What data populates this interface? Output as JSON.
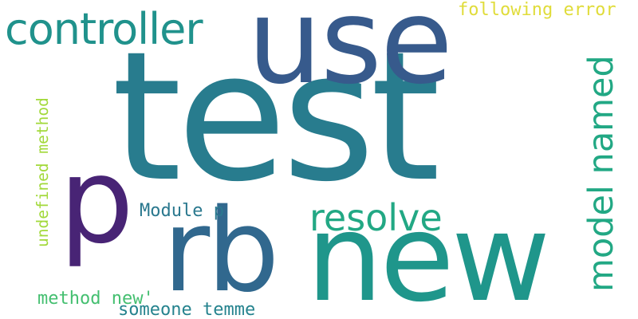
{
  "words": [
    {
      "text": "test",
      "color": "#287c8e"
    },
    {
      "text": "use",
      "color": "#375a8c"
    },
    {
      "text": "rb",
      "color": "#31688e"
    },
    {
      "text": "new",
      "color": "#1f968b"
    },
    {
      "text": "p",
      "color": "#482475"
    },
    {
      "text": "controller",
      "color": "#20928c"
    },
    {
      "text": "resolve",
      "color": "#22a884"
    },
    {
      "text": "model named",
      "color": "#22a884"
    },
    {
      "text": "following error",
      "color": "#e0dc3a"
    },
    {
      "text": "undefined method",
      "color": "#a2d93a"
    },
    {
      "text": "Module p",
      "color": "#2a788e"
    },
    {
      "text": "method new'",
      "color": "#44bf70"
    },
    {
      "text": "someone temme",
      "color": "#25838e"
    }
  ]
}
